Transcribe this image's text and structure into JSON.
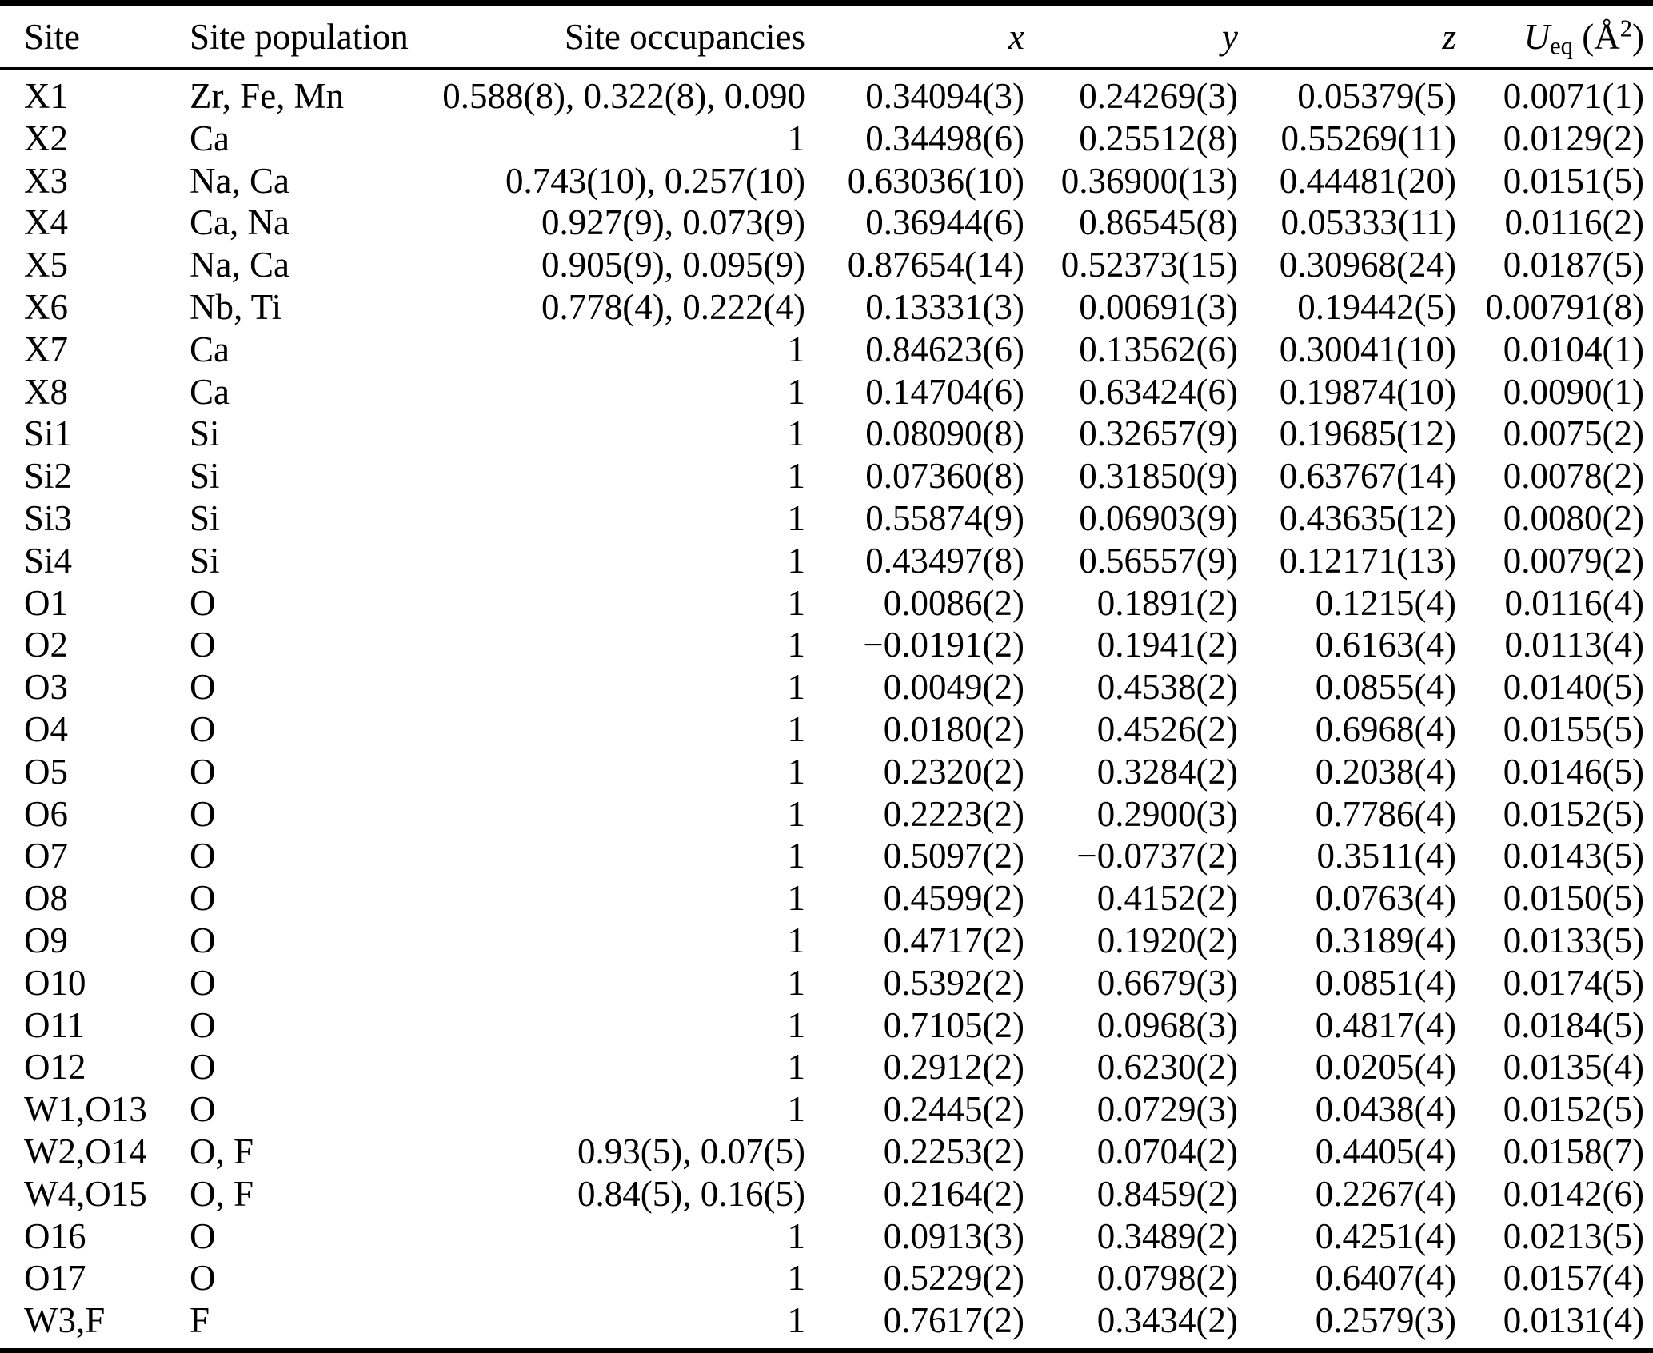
{
  "table": {
    "columns": [
      {
        "key": "site",
        "label": "Site",
        "align": "left",
        "italic": false
      },
      {
        "key": "population",
        "label": "Site population",
        "align": "left",
        "italic": false
      },
      {
        "key": "occupancies",
        "label": "Site occupancies",
        "align": "right",
        "italic": false
      },
      {
        "key": "x",
        "label": "x",
        "align": "right",
        "italic": true
      },
      {
        "key": "y",
        "label": "y",
        "align": "right",
        "italic": true
      },
      {
        "key": "z",
        "label": "z",
        "align": "right",
        "italic": true
      },
      {
        "key": "ueq",
        "align": "right",
        "italic": false,
        "label_parts": {
          "symbol": "U",
          "subscript": "eq",
          "open": " (",
          "angstrom": "Å",
          "exponent": "2",
          "close": ")"
        }
      }
    ],
    "rows": [
      [
        "X1",
        "Zr, Fe, Mn",
        "0.588(8), 0.322(8), 0.090",
        "0.34094(3)",
        "0.24269(3)",
        "0.05379(5)",
        "0.0071(1)"
      ],
      [
        "X2",
        "Ca",
        "1",
        "0.34498(6)",
        "0.25512(8)",
        "0.55269(11)",
        "0.0129(2)"
      ],
      [
        "X3",
        "Na, Ca",
        "0.743(10), 0.257(10)",
        "0.63036(10)",
        "0.36900(13)",
        "0.44481(20)",
        "0.0151(5)"
      ],
      [
        "X4",
        "Ca, Na",
        "0.927(9), 0.073(9)",
        "0.36944(6)",
        "0.86545(8)",
        "0.05333(11)",
        "0.0116(2)"
      ],
      [
        "X5",
        "Na, Ca",
        "0.905(9), 0.095(9)",
        "0.87654(14)",
        "0.52373(15)",
        "0.30968(24)",
        "0.0187(5)"
      ],
      [
        "X6",
        "Nb, Ti",
        "0.778(4), 0.222(4)",
        "0.13331(3)",
        "0.00691(3)",
        "0.19442(5)",
        "0.00791(8)"
      ],
      [
        "X7",
        "Ca",
        "1",
        "0.84623(6)",
        "0.13562(6)",
        "0.30041(10)",
        "0.0104(1)"
      ],
      [
        "X8",
        "Ca",
        "1",
        "0.14704(6)",
        "0.63424(6)",
        "0.19874(10)",
        "0.0090(1)"
      ],
      [
        "Si1",
        "Si",
        "1",
        "0.08090(8)",
        "0.32657(9)",
        "0.19685(12)",
        "0.0075(2)"
      ],
      [
        "Si2",
        "Si",
        "1",
        "0.07360(8)",
        "0.31850(9)",
        "0.63767(14)",
        "0.0078(2)"
      ],
      [
        "Si3",
        "Si",
        "1",
        "0.55874(9)",
        "0.06903(9)",
        "0.43635(12)",
        "0.0080(2)"
      ],
      [
        "Si4",
        "Si",
        "1",
        "0.43497(8)",
        "0.56557(9)",
        "0.12171(13)",
        "0.0079(2)"
      ],
      [
        "O1",
        "O",
        "1",
        "0.0086(2)",
        "0.1891(2)",
        "0.1215(4)",
        "0.0116(4)"
      ],
      [
        "O2",
        "O",
        "1",
        "−0.0191(2)",
        "0.1941(2)",
        "0.6163(4)",
        "0.0113(4)"
      ],
      [
        "O3",
        "O",
        "1",
        "0.0049(2)",
        "0.4538(2)",
        "0.0855(4)",
        "0.0140(5)"
      ],
      [
        "O4",
        "O",
        "1",
        "0.0180(2)",
        "0.4526(2)",
        "0.6968(4)",
        "0.0155(5)"
      ],
      [
        "O5",
        "O",
        "1",
        "0.2320(2)",
        "0.3284(2)",
        "0.2038(4)",
        "0.0146(5)"
      ],
      [
        "O6",
        "O",
        "1",
        "0.2223(2)",
        "0.2900(3)",
        "0.7786(4)",
        "0.0152(5)"
      ],
      [
        "O7",
        "O",
        "1",
        "0.5097(2)",
        "−0.0737(2)",
        "0.3511(4)",
        "0.0143(5)"
      ],
      [
        "O8",
        "O",
        "1",
        "0.4599(2)",
        "0.4152(2)",
        "0.0763(4)",
        "0.0150(5)"
      ],
      [
        "O9",
        "O",
        "1",
        "0.4717(2)",
        "0.1920(2)",
        "0.3189(4)",
        "0.0133(5)"
      ],
      [
        "O10",
        "O",
        "1",
        "0.5392(2)",
        "0.6679(3)",
        "0.0851(4)",
        "0.0174(5)"
      ],
      [
        "O11",
        "O",
        "1",
        "0.7105(2)",
        "0.0968(3)",
        "0.4817(4)",
        "0.0184(5)"
      ],
      [
        "O12",
        "O",
        "1",
        "0.2912(2)",
        "0.6230(2)",
        "0.0205(4)",
        "0.0135(4)"
      ],
      [
        "W1,O13",
        "O",
        "1",
        "0.2445(2)",
        "0.0729(3)",
        "0.0438(4)",
        "0.0152(5)"
      ],
      [
        "W2,O14",
        "O, F",
        "0.93(5), 0.07(5)",
        "0.2253(2)",
        "0.0704(2)",
        "0.4405(4)",
        "0.0158(7)"
      ],
      [
        "W4,O15",
        "O, F",
        "0.84(5), 0.16(5)",
        "0.2164(2)",
        "0.8459(2)",
        "0.2267(4)",
        "0.0142(6)"
      ],
      [
        "O16",
        "O",
        "1",
        "0.0913(3)",
        "0.3489(2)",
        "0.4251(4)",
        "0.0213(5)"
      ],
      [
        "O17",
        "O",
        "1",
        "0.5229(2)",
        "0.0798(2)",
        "0.6407(4)",
        "0.0157(4)"
      ],
      [
        "W3,F",
        "F",
        "1",
        "0.7617(2)",
        "0.3434(2)",
        "0.2579(3)",
        "0.0131(4)"
      ]
    ]
  }
}
